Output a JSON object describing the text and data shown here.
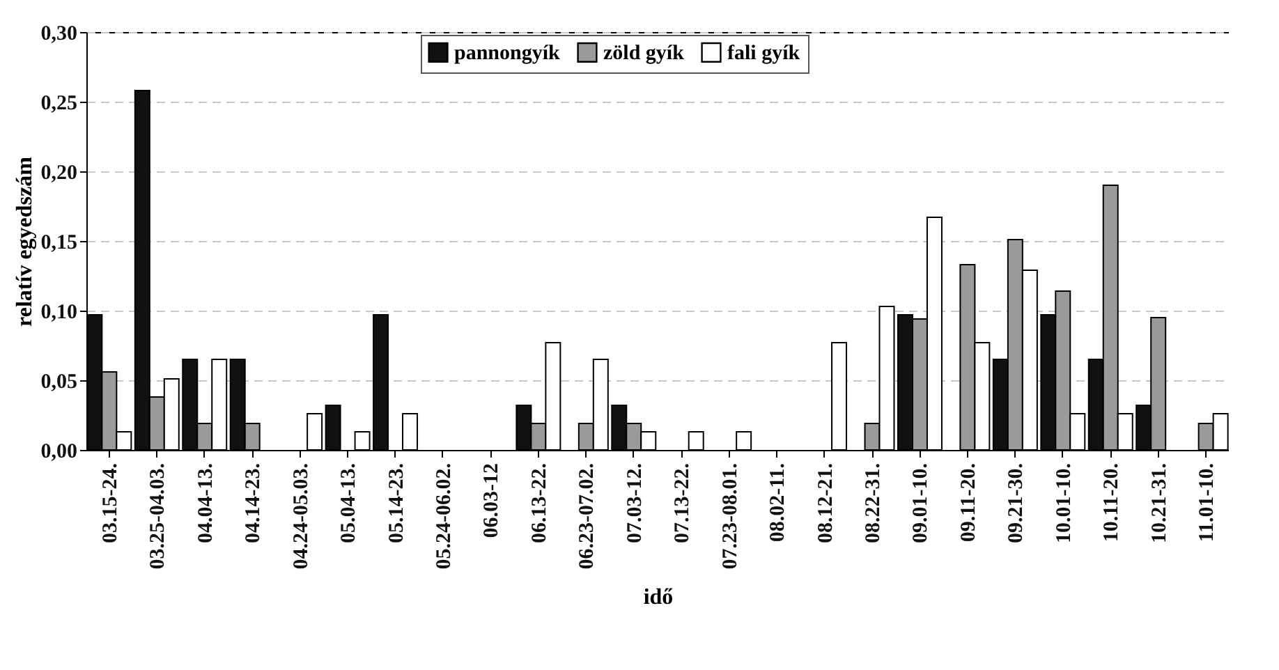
{
  "chart_data": {
    "type": "bar",
    "xlabel": "idő",
    "ylabel": "relatív egyedszám",
    "categories": [
      "03.15-24.",
      "03.25-04.03.",
      "04.04-13.",
      "04.14-23.",
      "04.24-05.03.",
      "05.04-13.",
      "05.14-23.",
      "05.24-06.02.",
      "06.03-12",
      "06.13-22.",
      "06.23-07.02.",
      "07.03-12.",
      "07.13-22.",
      "07.23-08.01.",
      "08.02-11.",
      "08.12-21.",
      "08.22-31.",
      "09.01-10.",
      "09.11-20.",
      "09.21-30.",
      "10.01-10.",
      "10.11-20.",
      "10.21-31.",
      "11.01-10."
    ],
    "series": [
      {
        "name": "pannongyík",
        "color": "#111111",
        "values": [
          0.097,
          0.258,
          0.065,
          0.065,
          0,
          0.032,
          0.097,
          0,
          0,
          0.032,
          0,
          0.032,
          0,
          0,
          0,
          0,
          0,
          0.097,
          0,
          0.065,
          0.097,
          0.065,
          0.032,
          0
        ]
      },
      {
        "name": "zöld gyík",
        "color": "#9a9a9a",
        "values": [
          0.056,
          0.038,
          0.019,
          0.019,
          0,
          0,
          0,
          0,
          0,
          0.019,
          0.019,
          0.019,
          0,
          0,
          0,
          0,
          0.019,
          0.094,
          0.133,
          0.151,
          0.114,
          0.19,
          0.095,
          0.019
        ]
      },
      {
        "name": "fali gyík",
        "color": "#ffffff",
        "values": [
          0.013,
          0.051,
          0.065,
          0,
          0.026,
          0.013,
          0.026,
          0,
          0,
          0.077,
          0.065,
          0.013,
          0.013,
          0.013,
          0,
          0.077,
          0.103,
          0.167,
          0.077,
          0.129,
          0.026,
          0.026,
          0,
          0.026
        ]
      }
    ],
    "ylim": [
      0,
      0.3
    ],
    "yticks": [
      {
        "value": 0,
        "label": "0,00"
      },
      {
        "value": 0.05,
        "label": "0,05"
      },
      {
        "value": 0.1,
        "label": "0,10"
      },
      {
        "value": 0.15,
        "label": "0,15"
      },
      {
        "value": 0.2,
        "label": "0,20"
      },
      {
        "value": 0.25,
        "label": "0,25"
      },
      {
        "value": 0.3,
        "label": "0,30"
      }
    ],
    "grid": "y",
    "legend": "top"
  }
}
